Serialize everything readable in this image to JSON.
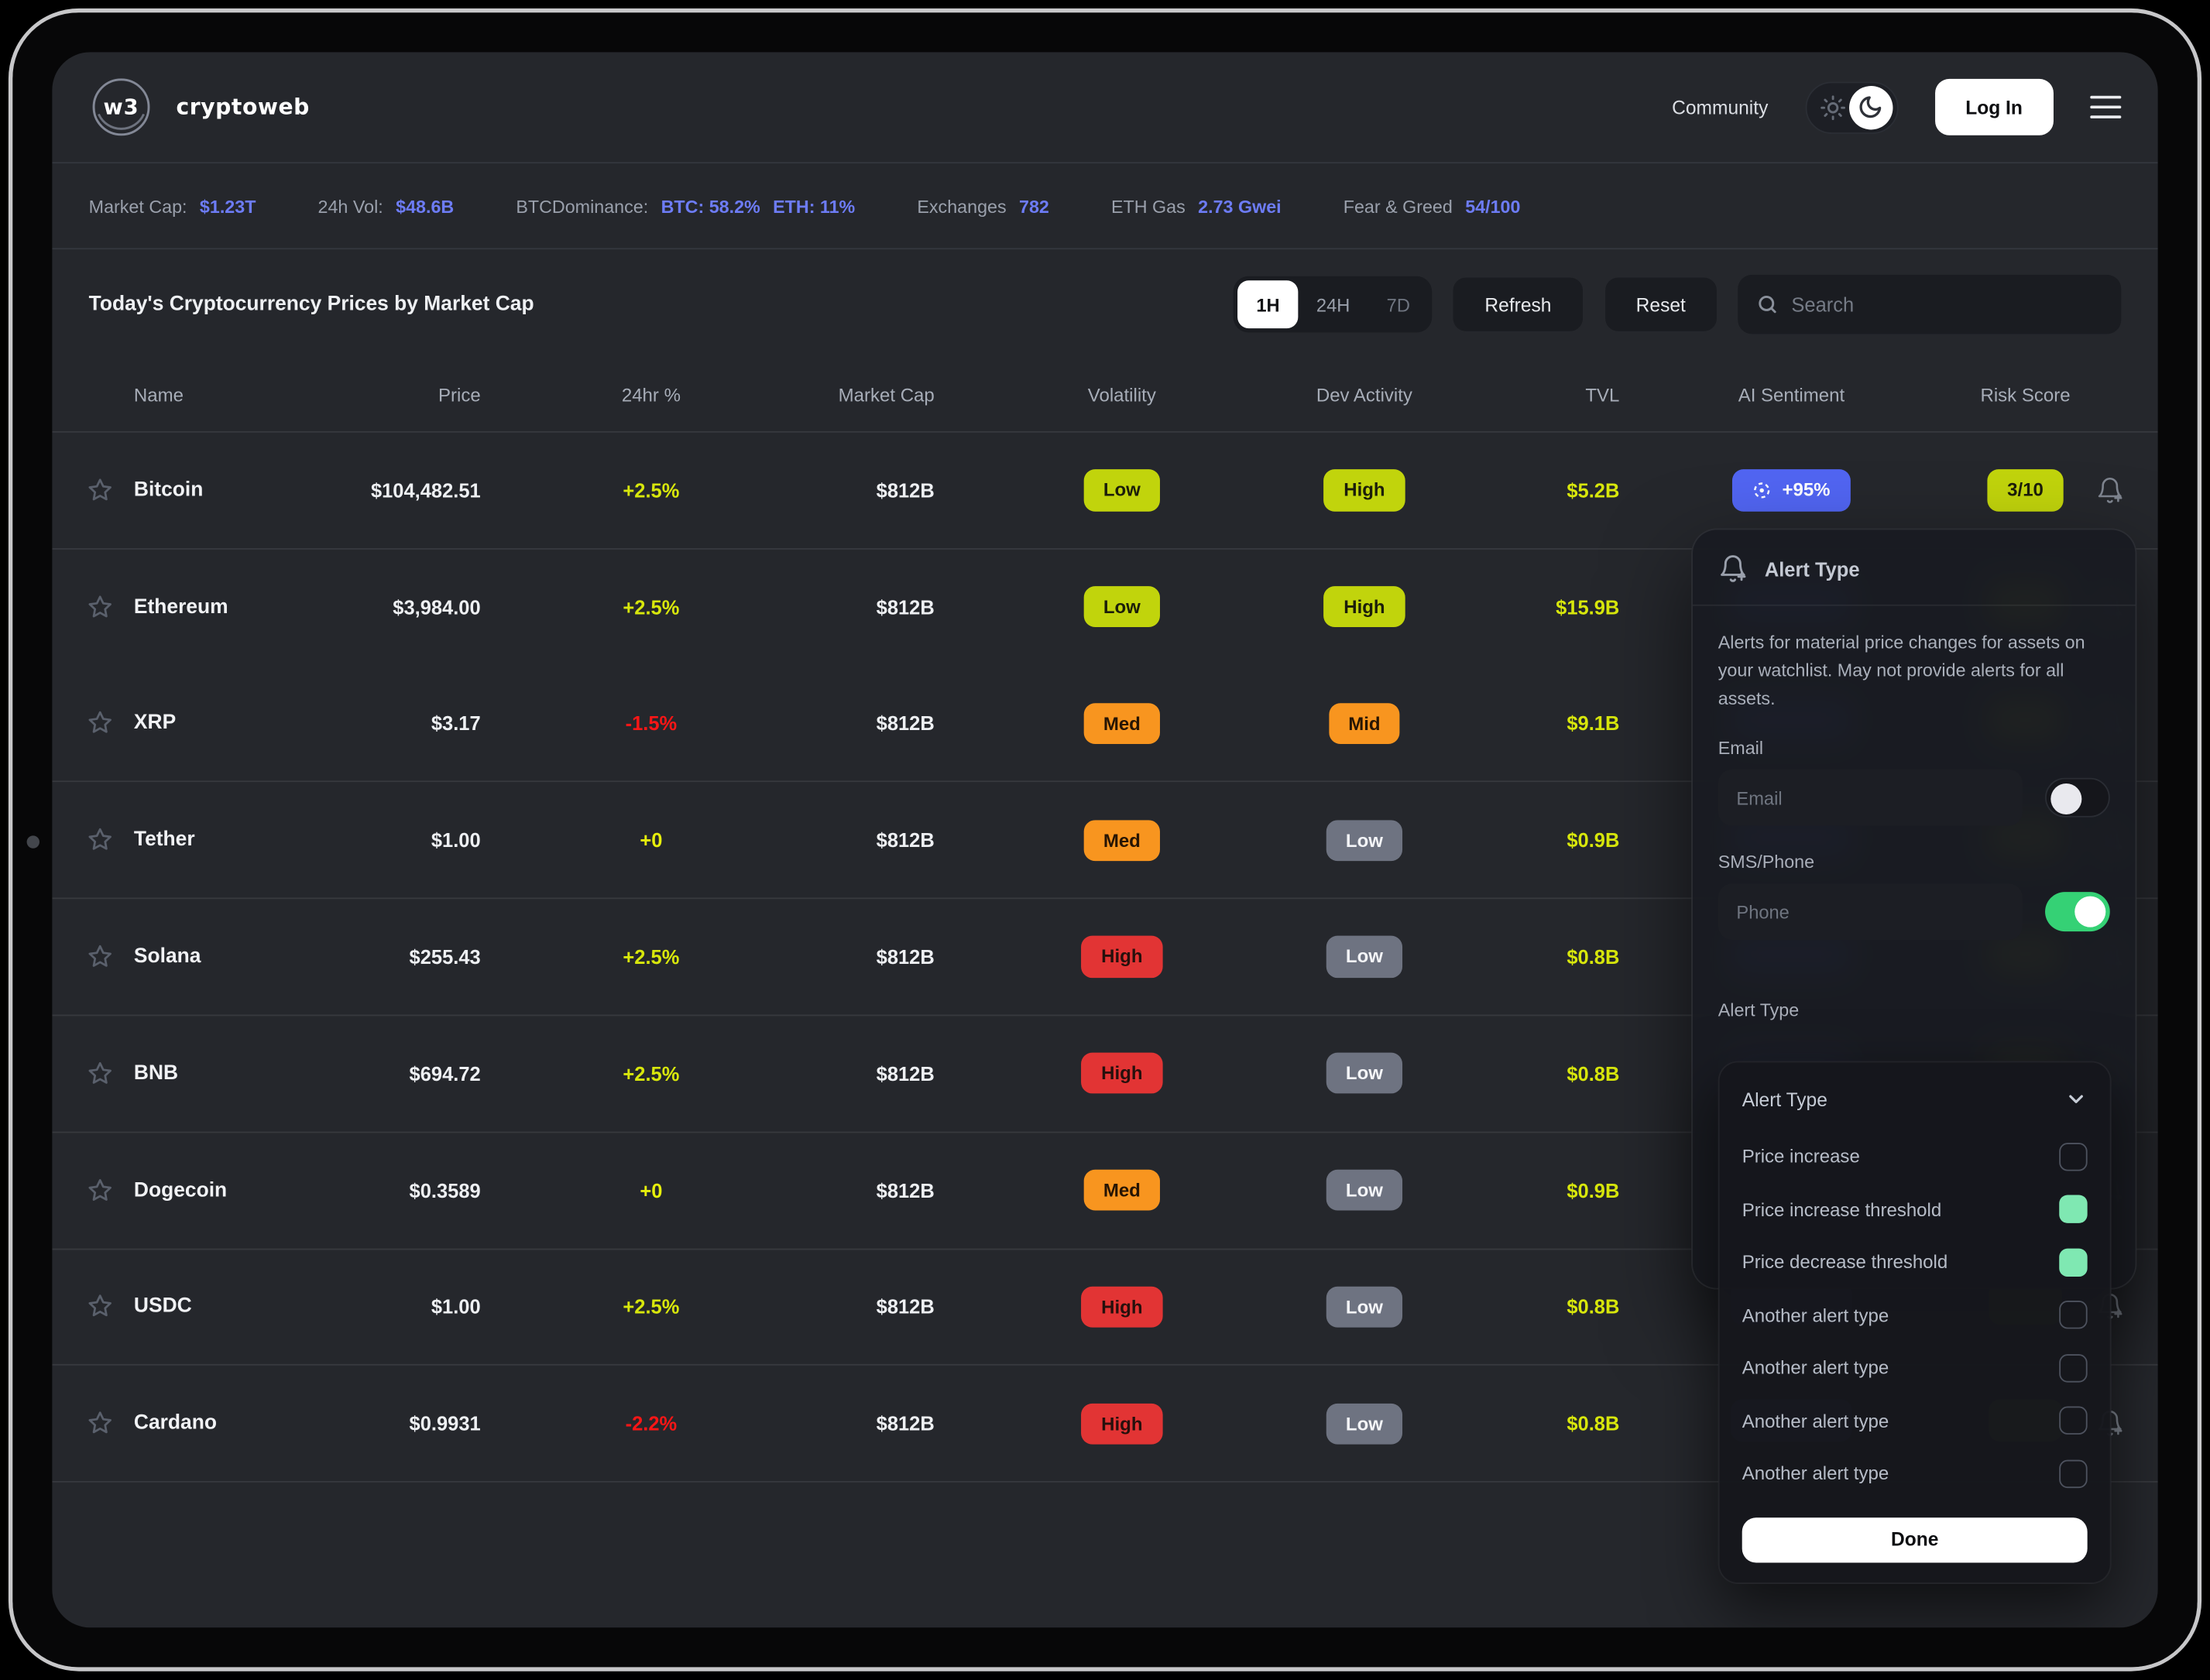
{
  "brand": {
    "logo_text": "w3",
    "name": "cryptoweb"
  },
  "header": {
    "community": "Community",
    "login": "Log In"
  },
  "stats": [
    {
      "label": "Market Cap:",
      "values": [
        "$1.23T"
      ]
    },
    {
      "label": "24h Vol:",
      "values": [
        "$48.6B"
      ]
    },
    {
      "label": "BTCDominance:",
      "values": [
        "BTC: 58.2%",
        "ETH: 11%"
      ]
    },
    {
      "label": "Exchanges",
      "values": [
        "782"
      ]
    },
    {
      "label": "ETH Gas",
      "values": [
        "2.73 Gwei"
      ]
    },
    {
      "label": "Fear & Greed",
      "values": [
        "54/100"
      ]
    }
  ],
  "toolbar": {
    "title": "Today's Cryptocurrency Prices by Market Cap",
    "ranges": [
      "1H",
      "24H",
      "7D"
    ],
    "active_range": "1H",
    "refresh": "Refresh",
    "reset": "Reset",
    "search_placeholder": "Search"
  },
  "table": {
    "columns": [
      "Name",
      "Price",
      "24hr %",
      "Market Cap",
      "Volatility",
      "Dev Activity",
      "TVL",
      "AI Sentiment",
      "Risk Score"
    ],
    "rows": [
      {
        "name": "Bitcoin",
        "price": "$104,482.51",
        "change": "+2.5%",
        "change_type": "up",
        "market_cap": "$812B",
        "volatility": "Low",
        "volatility_level": "lime",
        "dev_activity": "High",
        "dev_level": "lime",
        "tvl": "$5.2B",
        "ai_sentiment": "+95%",
        "risk_score": "3/10"
      },
      {
        "name": "Ethereum",
        "price": "$3,984.00",
        "change": "+2.5%",
        "change_type": "up",
        "market_cap": "$812B",
        "volatility": "Low",
        "volatility_level": "lime",
        "dev_activity": "High",
        "dev_level": "lime",
        "tvl": "$15.9B"
      },
      {
        "name": "XRP",
        "price": "$3.17",
        "change": "-1.5%",
        "change_type": "down",
        "market_cap": "$812B",
        "volatility": "Med",
        "volatility_level": "orange",
        "dev_activity": "Mid",
        "dev_level": "orange",
        "tvl": "$9.1B"
      },
      {
        "name": "Tether",
        "price": "$1.00",
        "change": "+0",
        "change_type": "zero",
        "market_cap": "$812B",
        "volatility": "Med",
        "volatility_level": "orange",
        "dev_activity": "Low",
        "dev_level": "gray",
        "tvl": "$0.9B"
      },
      {
        "name": "Solana",
        "price": "$255.43",
        "change": "+2.5%",
        "change_type": "up",
        "market_cap": "$812B",
        "volatility": "High",
        "volatility_level": "red",
        "dev_activity": "Low",
        "dev_level": "gray",
        "tvl": "$0.8B"
      },
      {
        "name": "BNB",
        "price": "$694.72",
        "change": "+2.5%",
        "change_type": "up",
        "market_cap": "$812B",
        "volatility": "High",
        "volatility_level": "red",
        "dev_activity": "Low",
        "dev_level": "gray",
        "tvl": "$0.8B"
      },
      {
        "name": "Dogecoin",
        "price": "$0.3589",
        "change": "+0",
        "change_type": "zero",
        "market_cap": "$812B",
        "volatility": "Med",
        "volatility_level": "orange",
        "dev_activity": "Low",
        "dev_level": "gray",
        "tvl": "$0.9B"
      },
      {
        "name": "USDC",
        "price": "$1.00",
        "change": "+2.5%",
        "change_type": "up",
        "market_cap": "$812B",
        "volatility": "High",
        "volatility_level": "red",
        "dev_activity": "Low",
        "dev_level": "gray",
        "tvl": "$0.8B"
      },
      {
        "name": "Cardano",
        "price": "$0.9931",
        "change": "-2.2%",
        "change_type": "down",
        "market_cap": "$812B",
        "volatility": "High",
        "volatility_level": "red",
        "dev_activity": "Low",
        "dev_level": "gray",
        "tvl": "$0.8B"
      }
    ]
  },
  "alert_panel": {
    "title": "Alert Type",
    "description": "Alerts for material price changes for assets on your watchlist. May not provide alerts for all assets.",
    "email_label": "Email",
    "email_placeholder": "Email",
    "email_enabled": false,
    "sms_label": "SMS/Phone",
    "phone_placeholder": "Phone",
    "sms_enabled": true,
    "type_label": "Alert Type",
    "dropdown_value": "Alert Type",
    "options": [
      {
        "label": "Price increase",
        "checked": false
      },
      {
        "label": "Price increase threshold",
        "checked": true
      },
      {
        "label": "Price decrease threshold",
        "checked": true
      },
      {
        "label": "Another alert type",
        "checked": false
      },
      {
        "label": "Another alert type",
        "checked": false
      },
      {
        "label": "Another alert type",
        "checked": false
      },
      {
        "label": "Another alert type",
        "checked": false
      }
    ],
    "done_label": "Done"
  },
  "colors": {
    "accent_blue": "#6d7cf6",
    "lime_badge": "#c1d40c",
    "lime_text": "#d8e70c",
    "orange_badge": "#f8951f",
    "red_badge": "#e23434",
    "red_text": "#fa1616",
    "gray_badge": "#6e7381",
    "sentiment_blue": "#5165f2",
    "mint_check": "#7fe8b2",
    "toggle_green": "#35d175"
  }
}
